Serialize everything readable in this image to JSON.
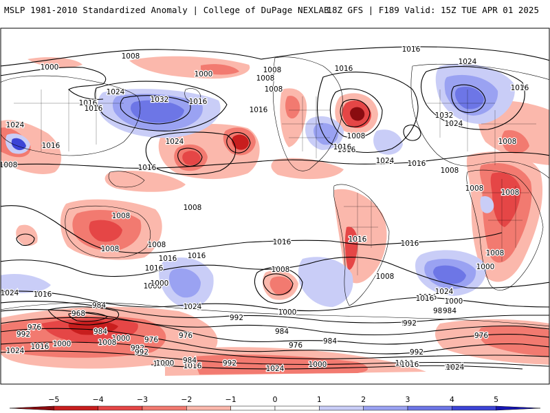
{
  "header": {
    "left": "MSLP 1981-2010 Standardized Anomaly | College of DuPage NEXLAB",
    "right": "18Z GFS | F189 Valid: 15Z TUE APR 01 2025"
  },
  "colorbar": {
    "ticks": [
      "−5",
      "−4",
      "−3",
      "−2",
      "−1",
      "0",
      "1",
      "2",
      "3",
      "4",
      "5"
    ],
    "colors": [
      "#8a0c10",
      "#c81e1e",
      "#e54646",
      "#f27a70",
      "#fbb8ac",
      "#ffffff",
      "#ffffff",
      "#c9cdf7",
      "#9aa2f2",
      "#6d76e6",
      "#3c44d6",
      "#1616b4"
    ]
  },
  "map": {
    "isobar_labels": [
      {
        "text": "1008"
      },
      {
        "text": "1000"
      },
      {
        "text": "1000"
      },
      {
        "text": "1016"
      },
      {
        "text": "1008"
      },
      {
        "text": "1008"
      },
      {
        "text": "1016"
      },
      {
        "text": "1024"
      },
      {
        "text": "1016"
      },
      {
        "text": "1024"
      },
      {
        "text": "1016"
      },
      {
        "text": "1032"
      },
      {
        "text": "1016"
      },
      {
        "text": "1016"
      },
      {
        "text": "1008"
      },
      {
        "text": "1016"
      },
      {
        "text": "1024"
      },
      {
        "text": "1008"
      },
      {
        "text": "1024"
      },
      {
        "text": "1032"
      },
      {
        "text": "1024"
      },
      {
        "text": "1016"
      },
      {
        "text": "1008"
      },
      {
        "text": "1024"
      },
      {
        "text": "1016"
      },
      {
        "text": "1008"
      },
      {
        "text": "1008"
      },
      {
        "text": "1008"
      },
      {
        "text": "1016"
      },
      {
        "text": "1016"
      },
      {
        "text": "1008"
      },
      {
        "text": "1008"
      },
      {
        "text": "1016"
      },
      {
        "text": "1008"
      },
      {
        "text": "1016"
      },
      {
        "text": "1008"
      },
      {
        "text": "1016"
      },
      {
        "text": "1008"
      },
      {
        "text": "1000"
      },
      {
        "text": "1024"
      },
      {
        "text": "1016"
      },
      {
        "text": "1008"
      },
      {
        "text": "1024"
      },
      {
        "text": "1016"
      },
      {
        "text": "1000"
      },
      {
        "text": "992"
      },
      {
        "text": "1000"
      },
      {
        "text": "984"
      },
      {
        "text": "968"
      },
      {
        "text": "984"
      },
      {
        "text": "976"
      },
      {
        "text": "992"
      },
      {
        "text": "1016"
      },
      {
        "text": "1000"
      },
      {
        "text": "1008"
      },
      {
        "text": "1024"
      },
      {
        "text": "992"
      },
      {
        "text": "976"
      },
      {
        "text": "976"
      },
      {
        "text": "984"
      },
      {
        "text": "984"
      },
      {
        "text": "976"
      },
      {
        "text": "992"
      },
      {
        "text": "984"
      },
      {
        "text": "976"
      },
      {
        "text": "992"
      },
      {
        "text": "1000"
      },
      {
        "text": "1016"
      },
      {
        "text": "984"
      },
      {
        "text": "992"
      },
      {
        "text": "1000"
      },
      {
        "text": "1024"
      },
      {
        "text": "1016"
      },
      {
        "text": "1024"
      },
      {
        "text": "1016"
      },
      {
        "text": "1016"
      },
      {
        "text": "1008"
      },
      {
        "text": "1016"
      },
      {
        "text": "1008"
      },
      {
        "text": "1000"
      },
      {
        "text": "1024"
      },
      {
        "text": "1016"
      },
      {
        "text": "992"
      },
      {
        "text": "984"
      },
      {
        "text": "992"
      },
      {
        "text": "1000"
      },
      {
        "text": "1024"
      },
      {
        "text": "1016"
      },
      {
        "text": "1000"
      },
      {
        "text": "1000"
      },
      {
        "text": "1016"
      }
    ]
  }
}
